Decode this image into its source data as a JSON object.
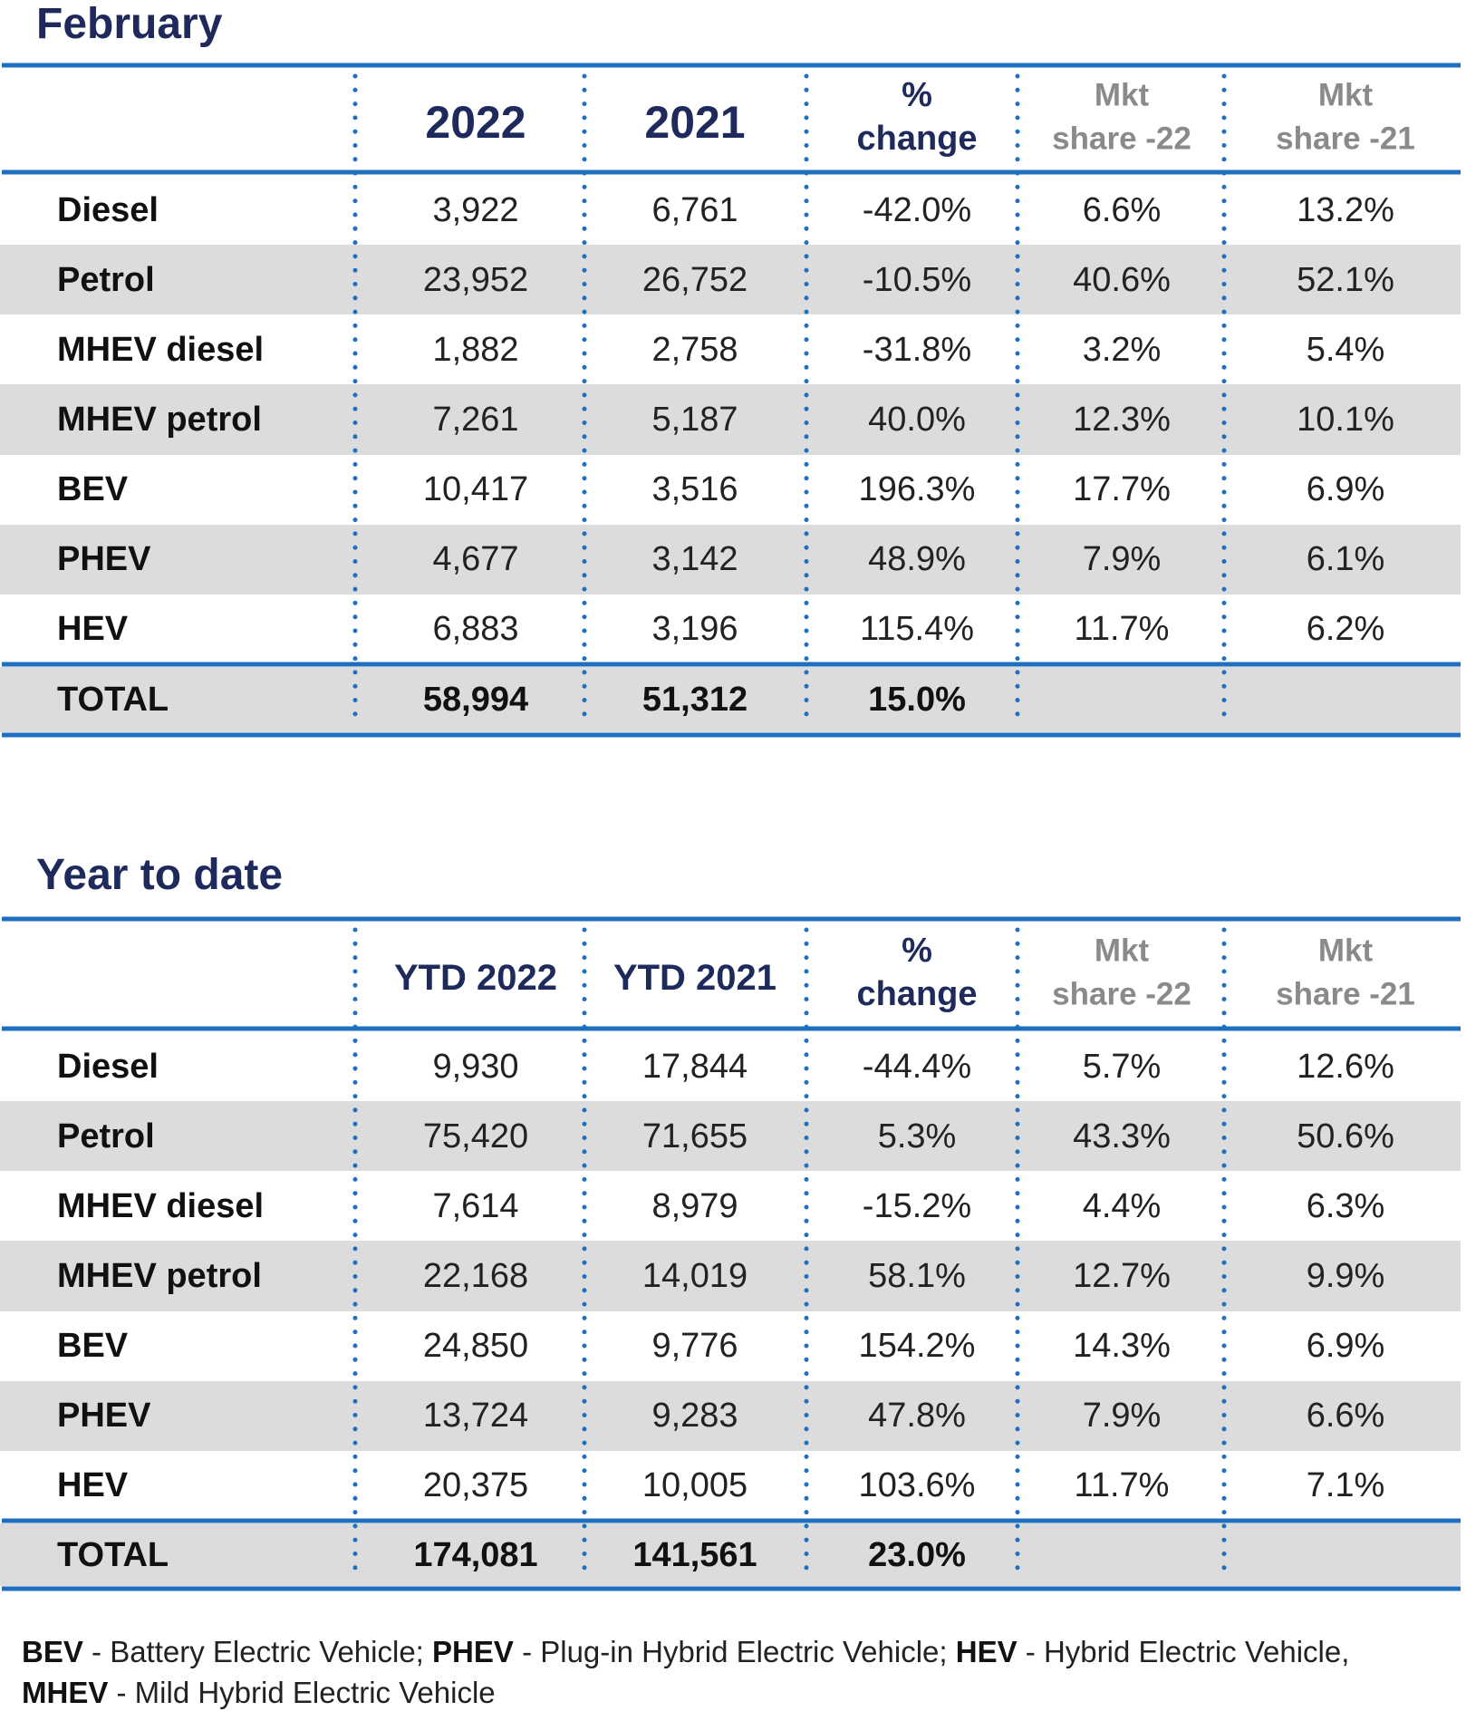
{
  "tables": [
    {
      "title": "February",
      "columns": [
        [
          "2022"
        ],
        [
          "2021"
        ],
        [
          "%",
          "change"
        ],
        [
          "Mkt",
          "share -22"
        ],
        [
          "Mkt",
          "share -21"
        ]
      ],
      "rows": [
        {
          "label": "Diesel",
          "cells": [
            "3,922",
            "6,761",
            "-42.0%",
            "6.6%",
            "13.2%"
          ]
        },
        {
          "label": "Petrol",
          "cells": [
            "23,952",
            "26,752",
            "-10.5%",
            "40.6%",
            "52.1%"
          ]
        },
        {
          "label": "MHEV diesel",
          "cells": [
            "1,882",
            "2,758",
            "-31.8%",
            "3.2%",
            "5.4%"
          ]
        },
        {
          "label": "MHEV petrol",
          "cells": [
            "7,261",
            "5,187",
            "40.0%",
            "12.3%",
            "10.1%"
          ]
        },
        {
          "label": "BEV",
          "cells": [
            "10,417",
            "3,516",
            "196.3%",
            "17.7%",
            "6.9%"
          ]
        },
        {
          "label": "PHEV",
          "cells": [
            "4,677",
            "3,142",
            "48.9%",
            "7.9%",
            "6.1%"
          ]
        },
        {
          "label": "HEV",
          "cells": [
            "6,883",
            "3,196",
            "115.4%",
            "11.7%",
            "6.2%"
          ]
        }
      ],
      "total": {
        "label": "TOTAL",
        "cells": [
          "58,994",
          "51,312",
          "15.0%"
        ]
      }
    },
    {
      "title": "Year to date",
      "columns": [
        [
          "YTD 2022"
        ],
        [
          "YTD 2021"
        ],
        [
          "%",
          "change"
        ],
        [
          "Mkt",
          "share -22"
        ],
        [
          "Mkt",
          "share -21"
        ]
      ],
      "rows": [
        {
          "label": "Diesel",
          "cells": [
            "9,930",
            "17,844",
            "-44.4%",
            "5.7%",
            "12.6%"
          ]
        },
        {
          "label": "Petrol",
          "cells": [
            "75,420",
            "71,655",
            "5.3%",
            "43.3%",
            "50.6%"
          ]
        },
        {
          "label": "MHEV diesel",
          "cells": [
            "7,614",
            "8,979",
            "-15.2%",
            "4.4%",
            "6.3%"
          ]
        },
        {
          "label": "MHEV petrol",
          "cells": [
            "22,168",
            "14,019",
            "58.1%",
            "12.7%",
            "9.9%"
          ]
        },
        {
          "label": "BEV",
          "cells": [
            "24,850",
            "9,776",
            "154.2%",
            "14.3%",
            "6.9%"
          ]
        },
        {
          "label": "PHEV",
          "cells": [
            "13,724",
            "9,283",
            "47.8%",
            "7.9%",
            "6.6%"
          ]
        },
        {
          "label": "HEV",
          "cells": [
            "20,375",
            "10,005",
            "103.6%",
            "11.7%",
            "7.1%"
          ]
        }
      ],
      "total": {
        "label": "TOTAL",
        "cells": [
          "174,081",
          "141,561",
          "23.0%"
        ]
      }
    }
  ],
  "footnote": [
    {
      "term": "BEV",
      "text": "- Battery Electric Vehicle;"
    },
    {
      "term": "PHEV",
      "text": "- Plug-in Hybrid Electric Vehicle;"
    },
    {
      "term": "HEV",
      "text": "- Hybrid Electric Vehicle,"
    },
    {
      "term": "MHEV",
      "text": "- Mild Hybrid Electric Vehicle"
    }
  ]
}
